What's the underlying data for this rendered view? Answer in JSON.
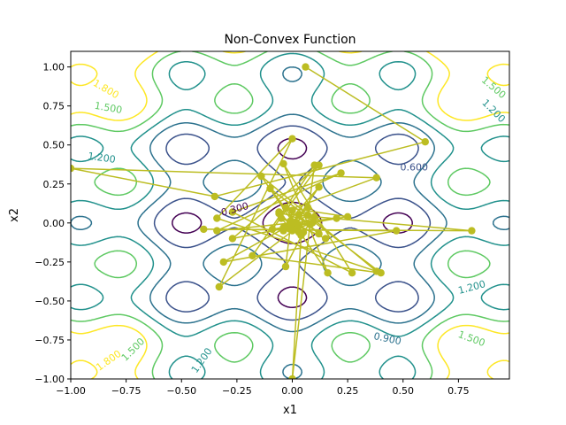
{
  "chart_data": {
    "type": "line",
    "title": "Non-Convex Function",
    "xlabel": "x1",
    "ylabel": "x2",
    "xlim": [
      -1.0,
      0.98
    ],
    "ylim": [
      -1.0,
      1.1
    ],
    "xticks": [
      -1.0,
      -0.75,
      -0.5,
      -0.25,
      0.0,
      0.25,
      0.5,
      0.75
    ],
    "xtick_labels": [
      "−1.00",
      "−0.75",
      "−0.50",
      "−0.25",
      "0.00",
      "0.25",
      "0.50",
      "0.75"
    ],
    "yticks": [
      -1.0,
      -0.75,
      -0.5,
      -0.25,
      0.0,
      0.25,
      0.5,
      0.75,
      1.0
    ],
    "ytick_labels": [
      "−1.00",
      "−0.75",
      "−0.50",
      "−0.25",
      "0.00",
      "0.25",
      "0.50",
      "0.75",
      "1.00"
    ],
    "grid": false,
    "contour_levels": [
      {
        "level": 0.3,
        "label": "0.300",
        "color": "#440154"
      },
      {
        "level": 0.6,
        "label": "0.600",
        "color": "#3b528b"
      },
      {
        "level": 0.9,
        "label": "0.900",
        "color": "#2c728e"
      },
      {
        "level": 1.2,
        "label": "1.200",
        "color": "#21918c"
      },
      {
        "level": 1.5,
        "label": "1.500",
        "color": "#5ec962"
      },
      {
        "level": 1.8,
        "label": "1.800",
        "color": "#fde725"
      }
    ],
    "contour_label_placements": [
      {
        "text": "0.300",
        "x": -0.26,
        "y": 0.09,
        "color": "#440154",
        "angle": 15
      },
      {
        "text": "0.600",
        "x": 0.55,
        "y": 0.36,
        "color": "#3b528b",
        "angle": 0
      },
      {
        "text": "0.900",
        "x": 0.43,
        "y": -0.74,
        "color": "#2c728e",
        "angle": -12
      },
      {
        "text": "1.200",
        "x": -0.86,
        "y": 0.42,
        "color": "#21918c",
        "angle": -8
      },
      {
        "text": "1.200",
        "x": 0.81,
        "y": -0.41,
        "color": "#21918c",
        "angle": 15
      },
      {
        "text": "1.200",
        "x": 0.91,
        "y": 0.72,
        "color": "#21918c",
        "angle": -45
      },
      {
        "text": "1.200",
        "x": -0.41,
        "y": -0.88,
        "color": "#21918c",
        "angle": 55
      },
      {
        "text": "1.500",
        "x": -0.83,
        "y": 0.74,
        "color": "#5ec962",
        "angle": -10
      },
      {
        "text": "1.500",
        "x": 0.91,
        "y": 0.87,
        "color": "#5ec962",
        "angle": -40
      },
      {
        "text": "1.500",
        "x": -0.72,
        "y": -0.81,
        "color": "#5ec962",
        "angle": 45
      },
      {
        "text": "1.500",
        "x": 0.81,
        "y": -0.74,
        "color": "#5ec962",
        "angle": -20
      },
      {
        "text": "1.800",
        "x": -0.84,
        "y": 0.86,
        "color": "#fde725",
        "angle": -30
      },
      {
        "text": "1.800",
        "x": -0.83,
        "y": -0.88,
        "color": "#fde725",
        "angle": 35
      }
    ],
    "series": [
      {
        "color": "#bcbd22",
        "points": [
          [
            0.06,
            1.0
          ],
          [
            0.6,
            0.52
          ],
          [
            -0.35,
            0.17
          ],
          [
            -1.0,
            0.35
          ],
          [
            0.38,
            0.29
          ],
          [
            -0.06,
            0.06
          ],
          [
            0.81,
            -0.05
          ],
          [
            -0.4,
            -0.04
          ],
          [
            0.47,
            -0.05
          ],
          [
            -0.31,
            -0.25
          ],
          [
            0.07,
            0.05
          ],
          [
            0.1,
            0.37
          ],
          [
            -0.18,
            -0.21
          ],
          [
            0.4,
            -0.32
          ],
          [
            -0.1,
            0.22
          ],
          [
            0.03,
            -0.02
          ],
          [
            -0.33,
            -0.41
          ],
          [
            0.0,
            0.54
          ],
          [
            -0.34,
            0.03
          ],
          [
            0.38,
            -0.31
          ],
          [
            -0.14,
            0.3
          ],
          [
            0.16,
            -0.32
          ],
          [
            -0.04,
            0.38
          ],
          [
            0.27,
            -0.32
          ],
          [
            -0.27,
            0.07
          ],
          [
            0.22,
            0.32
          ],
          [
            -0.34,
            -0.05
          ],
          [
            0.2,
            0.03
          ],
          [
            -0.27,
            -0.1
          ],
          [
            0.12,
            0.37
          ],
          [
            -0.09,
            -0.04
          ],
          [
            0.25,
            0.04
          ],
          [
            -0.03,
            0.1
          ],
          [
            0.12,
            -0.07
          ],
          [
            0.03,
            0.05
          ],
          [
            -0.04,
            -0.05
          ],
          [
            0.07,
            0.1
          ],
          [
            -0.02,
            -0.02
          ],
          [
            0.0,
            0.08
          ],
          [
            -0.03,
            -0.28
          ],
          [
            0.05,
            -0.06
          ],
          [
            0.1,
            0.04
          ],
          [
            -0.01,
            -0.04
          ],
          [
            0.12,
            0.23
          ],
          [
            -0.04,
            -0.03
          ],
          [
            0.03,
            -0.06
          ],
          [
            -0.01,
            0.01
          ],
          [
            0.15,
            -0.1
          ],
          [
            -0.05,
            0.03
          ],
          [
            0.0,
            -0.05
          ],
          [
            0.09,
            0.0
          ],
          [
            -0.06,
            0.07
          ],
          [
            0.04,
            -0.08
          ],
          [
            0.0,
            -1.0
          ],
          [
            0.08,
            -0.01
          ],
          [
            0.02,
            0.0
          ]
        ]
      }
    ]
  }
}
